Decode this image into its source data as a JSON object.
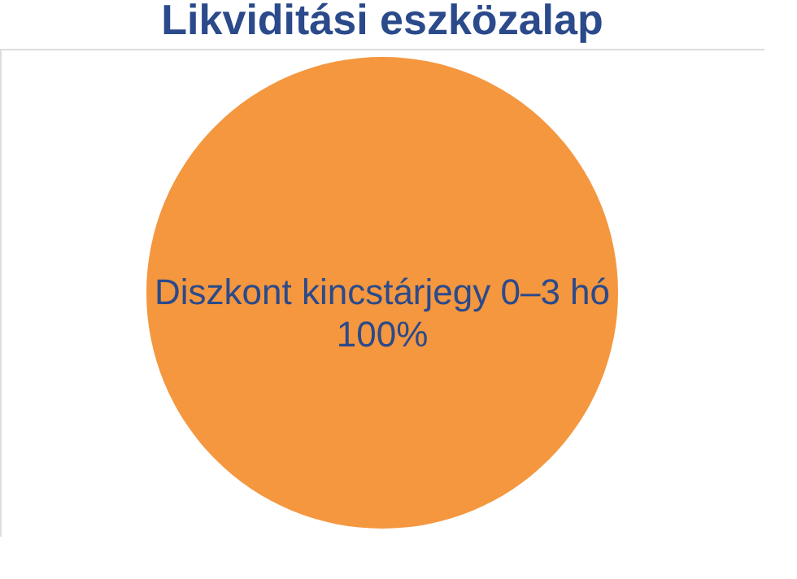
{
  "chart_data": {
    "type": "pie",
    "title": "Likviditási eszközalap",
    "categories": [
      "Diszkont kincstárjegy 0–3 hó"
    ],
    "values": [
      100
    ],
    "colors": [
      "#f4973f"
    ],
    "value_labels": [
      "100%"
    ]
  }
}
